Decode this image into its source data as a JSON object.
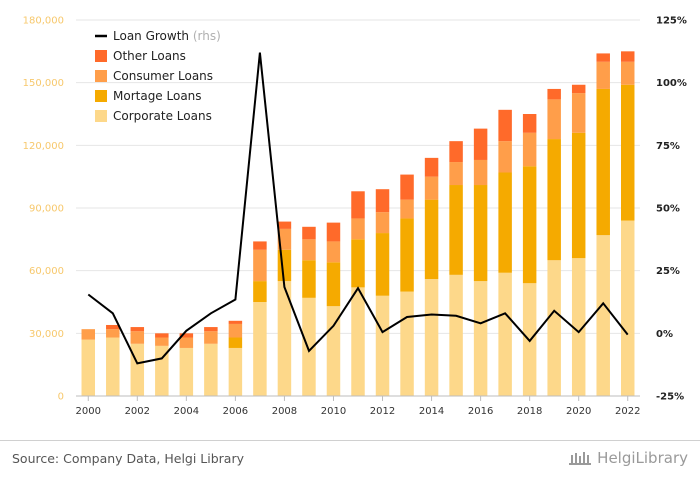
{
  "chart_data": {
    "type": "bar",
    "stacked": true,
    "categories": [
      "2000",
      "2001",
      "2002",
      "2003",
      "2004",
      "2005",
      "2006",
      "2007",
      "2008",
      "2009",
      "2010",
      "2011",
      "2012",
      "2013",
      "2014",
      "2015",
      "2016",
      "2017",
      "2018",
      "2019",
      "2020",
      "2021",
      "2022"
    ],
    "x_tick_labels": [
      "2000",
      "2002",
      "2004",
      "2006",
      "2008",
      "2010",
      "2012",
      "2014",
      "2016",
      "2018",
      "2020",
      "2022"
    ],
    "series": [
      {
        "name": "Corporate Loans",
        "color": "#fdd88a",
        "values": [
          27000,
          28000,
          25000,
          24000,
          23000,
          25000,
          23000,
          45000,
          55000,
          47000,
          43000,
          52000,
          48000,
          50000,
          56000,
          58000,
          55000,
          59000,
          54000,
          65000,
          66000,
          77000,
          84000
        ]
      },
      {
        "name": "Mortage Loans",
        "color": "#f5aa00",
        "values": [
          0,
          0,
          0,
          0,
          0,
          0,
          5000,
          10000,
          15000,
          18000,
          21000,
          23000,
          30000,
          35000,
          38000,
          43000,
          46000,
          48000,
          56000,
          58000,
          60000,
          70000,
          65000
        ]
      },
      {
        "name": "Consumer Loans",
        "color": "#ff9e4a",
        "values": [
          5000,
          4000,
          6000,
          4000,
          5000,
          6000,
          6500,
          15000,
          10000,
          10000,
          10000,
          10000,
          10000,
          9000,
          11000,
          11000,
          12000,
          15000,
          16000,
          19000,
          19000,
          13000,
          11000
        ]
      },
      {
        "name": "Other Loans",
        "color": "#ff6a2a",
        "values": [
          0,
          2000,
          2000,
          2000,
          2000,
          2000,
          1500,
          4000,
          3500,
          6000,
          9000,
          13000,
          11000,
          12000,
          9000,
          10000,
          15000,
          15000,
          9000,
          5000,
          4000,
          4000,
          5000
        ]
      }
    ],
    "line_series": {
      "name": "Loan Growth",
      "axis": "right",
      "color": "#000000",
      "values": [
        15.5,
        8,
        -12,
        -10,
        1,
        8,
        13.5,
        112,
        18.5,
        -7,
        3,
        18,
        0.5,
        6.5,
        7.5,
        7,
        4,
        8,
        -3,
        9,
        0.5,
        12,
        -0.5
      ]
    },
    "y_left": {
      "min": 0,
      "max": 180000,
      "ticks": [
        0,
        30000,
        60000,
        90000,
        120000,
        150000,
        180000
      ],
      "tick_labels": [
        "0",
        "30,000",
        "60,000",
        "90,000",
        "120,000",
        "150,000",
        "180,000"
      ]
    },
    "y_right": {
      "min": -25,
      "max": 125,
      "ticks": [
        -25,
        0,
        25,
        50,
        75,
        100,
        125
      ],
      "tick_labels": [
        "-25%",
        "0%",
        "25%",
        "50%",
        "75%",
        "100%",
        "125%"
      ]
    },
    "legend": {
      "position": "top-left",
      "entries": [
        {
          "label": "Loan Growth",
          "suffix": "(rhs)",
          "kind": "line",
          "color": "#000000"
        },
        {
          "label": "Other Loans",
          "kind": "box",
          "color": "#ff6a2a"
        },
        {
          "label": "Consumer Loans",
          "kind": "box",
          "color": "#ff9e4a"
        },
        {
          "label": "Mortage Loans",
          "kind": "box",
          "color": "#f5aa00"
        },
        {
          "label": "Corporate Loans",
          "kind": "box",
          "color": "#fdd88a"
        }
      ]
    },
    "grid": true
  },
  "footer": {
    "source": "Source: Company Data, Helgi Library",
    "brand": "HelgiLibrary"
  }
}
